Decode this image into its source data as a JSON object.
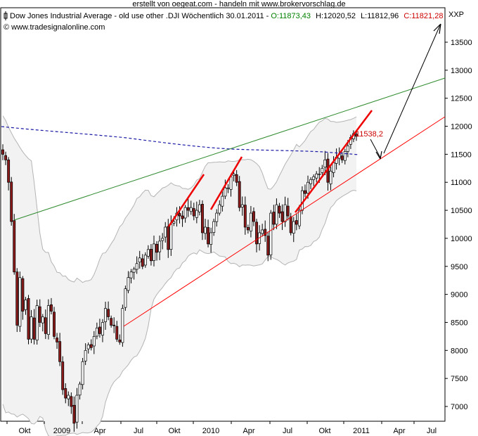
{
  "header": {
    "top_line": "erstellt von oegeat.com - handeln mit www.brokervorschlag.de",
    "legend_prefix": "Dow Jones Industrial Average - old use other .DJI Wöchentlich  30.01.2011 - ",
    "open_text": "O:11873,43",
    "high_text": "H:12020,52",
    "low_text": "L:11812,96",
    "close_text": "C:11821,28",
    "copyright": "© www.tradesignalonline.com",
    "symbol_label": "XXP"
  },
  "colors": {
    "up_candle": "#ffffff",
    "down_candle": "#8b1a1a",
    "candle_outline": "#000000",
    "green_trendline": "#2e8b2e",
    "red_trendline": "#ff0000",
    "moving_average": "#1a1aa6",
    "bollinger": "#b4b4b4",
    "band_fill": "#f2f2f2",
    "open_text": "#008000",
    "close_text": "#cc0000",
    "annotation": "#cc0000"
  },
  "chart_data": {
    "type": "candlestick",
    "title": "Dow Jones Industrial Average - old use other .DJI Wöchentlich",
    "date": "30.01.2011",
    "ohlc_last": {
      "open": 11873.43,
      "high": 12020.52,
      "low": 11812.96,
      "close": 11821.28
    },
    "y_ticks": [
      7000,
      7500,
      8000,
      8500,
      9000,
      9500,
      10000,
      10500,
      11000,
      11500,
      12000,
      12500,
      13000,
      13500
    ],
    "ylim": [
      6850,
      13650
    ],
    "x_ticks": [
      "Okt",
      "2009",
      "Apr",
      "Jul",
      "Okt",
      "2010",
      "Apr",
      "Jul",
      "Okt",
      "2011",
      "Apr",
      "Jul"
    ],
    "annotation": {
      "text": "11538,2",
      "value": 11538.2
    },
    "weekly_closes": [
      11500,
      11400,
      11000,
      10300,
      9400,
      8450,
      9300,
      8700,
      8900,
      8200,
      8600,
      8200,
      8800,
      8500,
      8600,
      8300,
      8800,
      8700,
      8250,
      8150,
      7800,
      7300,
      7150,
      7200,
      7000,
      6700,
      7200,
      7400,
      7800,
      8000,
      8100,
      8050,
      8250,
      8400,
      8300,
      8500,
      8750,
      8600,
      8450,
      8450,
      8200,
      8150,
      8750,
      9100,
      9300,
      9400,
      9450,
      9550,
      9650,
      9500,
      9700,
      9800,
      9600,
      9900,
      9750,
      9950,
      10000,
      10200,
      9800,
      10250,
      10300,
      10450,
      10400,
      10350,
      10550,
      10500,
      10550,
      10400,
      10500,
      10600,
      10100,
      10200,
      9900,
      10100,
      10300,
      10450,
      10600,
      10750,
      10900,
      10900,
      11100,
      11150,
      11000,
      10550,
      10600,
      10200,
      10150,
      10450,
      10300,
      9900,
      10100,
      10150,
      10050,
      9700,
      10450,
      10250,
      10600,
      10450,
      10300,
      10600,
      10400,
      10100,
      10300,
      10250,
      10500,
      10850,
      10800,
      11000,
      11050,
      11100,
      11150,
      11150,
      11250,
      11400,
      11000,
      11200,
      11350,
      11450,
      11500,
      11400,
      11550,
      11650,
      11800,
      11870,
      11820
    ]
  }
}
